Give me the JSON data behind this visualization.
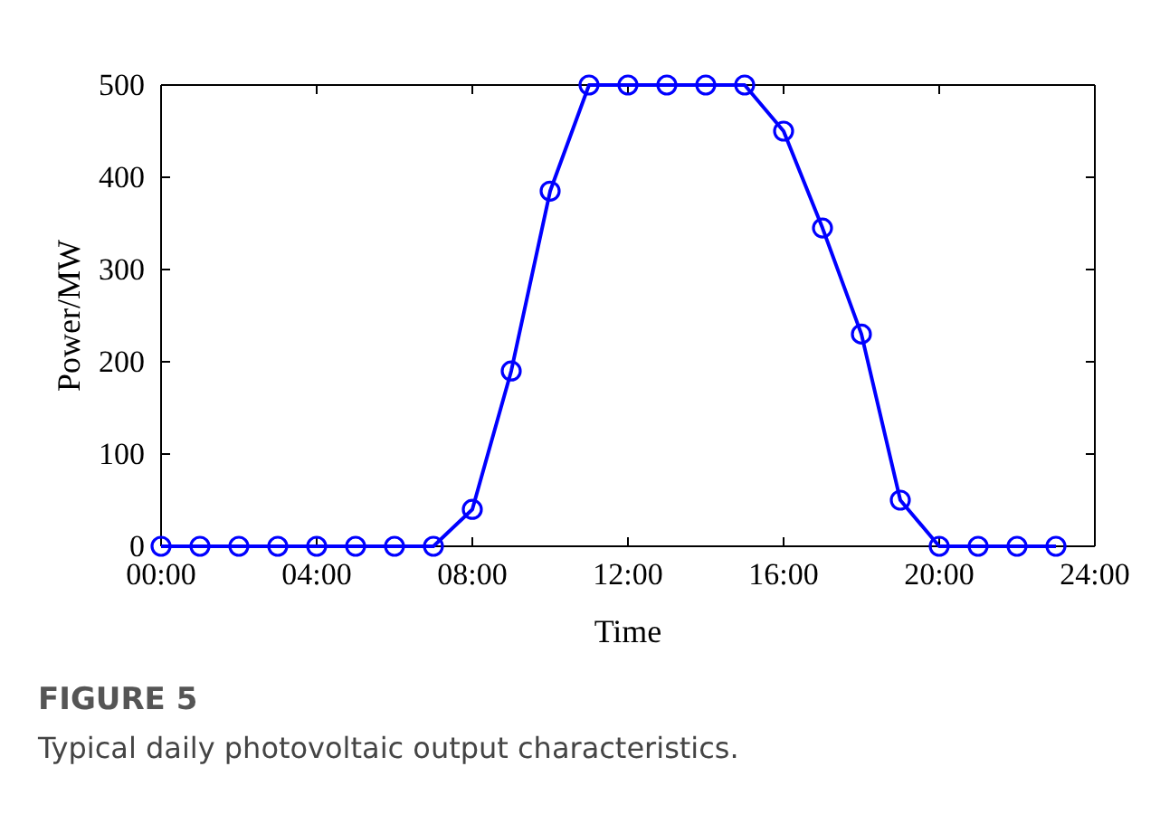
{
  "chart_data": {
    "type": "line",
    "xlabel": "Time",
    "ylabel": "Power/MW",
    "x": [
      0,
      1,
      2,
      3,
      4,
      5,
      6,
      7,
      8,
      9,
      10,
      11,
      12,
      13,
      14,
      15,
      16,
      17,
      18,
      19,
      20,
      21,
      22,
      23
    ],
    "series": [
      {
        "color": "#0000ff",
        "values": [
          0,
          0,
          0,
          0,
          0,
          0,
          0,
          0,
          40,
          190,
          385,
          500,
          500,
          500,
          500,
          500,
          450,
          345,
          230,
          50,
          0,
          0,
          0,
          0
        ]
      }
    ],
    "xlim": [
      0,
      24
    ],
    "xticks": [
      {
        "value": 0,
        "label": "00:00"
      },
      {
        "value": 4,
        "label": "04:00"
      },
      {
        "value": 8,
        "label": "08:00"
      },
      {
        "value": 12,
        "label": "12:00"
      },
      {
        "value": 16,
        "label": "16:00"
      },
      {
        "value": 20,
        "label": "20:00"
      },
      {
        "value": 24,
        "label": "24:00"
      }
    ],
    "ylim": [
      0,
      500
    ],
    "yticks": [
      0,
      100,
      200,
      300,
      400,
      500
    ],
    "marker": "circle",
    "line_style": "solid",
    "annotations": [
      "FIGURE 5",
      "Typical daily photovoltaic output characteristics."
    ]
  }
}
